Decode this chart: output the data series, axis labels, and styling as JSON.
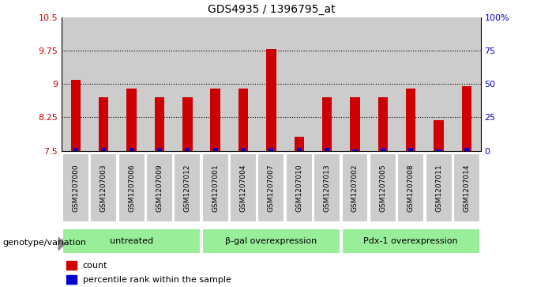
{
  "title": "GDS4935 / 1396795_at",
  "samples": [
    "GSM1207000",
    "GSM1207003",
    "GSM1207006",
    "GSM1207009",
    "GSM1207012",
    "GSM1207001",
    "GSM1207004",
    "GSM1207007",
    "GSM1207010",
    "GSM1207013",
    "GSM1207002",
    "GSM1207005",
    "GSM1207008",
    "GSM1207011",
    "GSM1207014"
  ],
  "counts": [
    9.1,
    8.7,
    8.9,
    8.7,
    8.7,
    8.9,
    8.9,
    9.78,
    7.82,
    8.7,
    8.7,
    8.7,
    8.9,
    8.18,
    8.95
  ],
  "percentiles": [
    2,
    2,
    2,
    2,
    2,
    2,
    2,
    2,
    2,
    2,
    1,
    2,
    2,
    1,
    2
  ],
  "ymin": 7.5,
  "ymax": 10.5,
  "yticks": [
    7.5,
    8.25,
    9.0,
    9.75,
    10.5
  ],
  "ytick_labels": [
    "7.5",
    "8.25",
    "9",
    "9.75",
    "10.5"
  ],
  "right_yticks": [
    0,
    25,
    50,
    75,
    100
  ],
  "right_ytick_labels": [
    "0",
    "25",
    "50",
    "75",
    "100%"
  ],
  "groups": [
    {
      "label": "untreated",
      "start": 0,
      "end": 4
    },
    {
      "label": "β-gal overexpression",
      "start": 5,
      "end": 9
    },
    {
      "label": "Pdx-1 overexpression",
      "start": 10,
      "end": 14
    }
  ],
  "bar_color": "#cc0000",
  "percentile_color": "#0000cc",
  "bar_width": 0.35,
  "bg_color": "#cccccc",
  "group_bg_color": "#99ee99",
  "ylabel_left_color": "#cc0000",
  "ylabel_right_color": "#0000cc",
  "genotype_label": "genotype/variation",
  "legend_count": "count",
  "legend_percentile": "percentile rank within the sample",
  "arrow_color": "#888888"
}
